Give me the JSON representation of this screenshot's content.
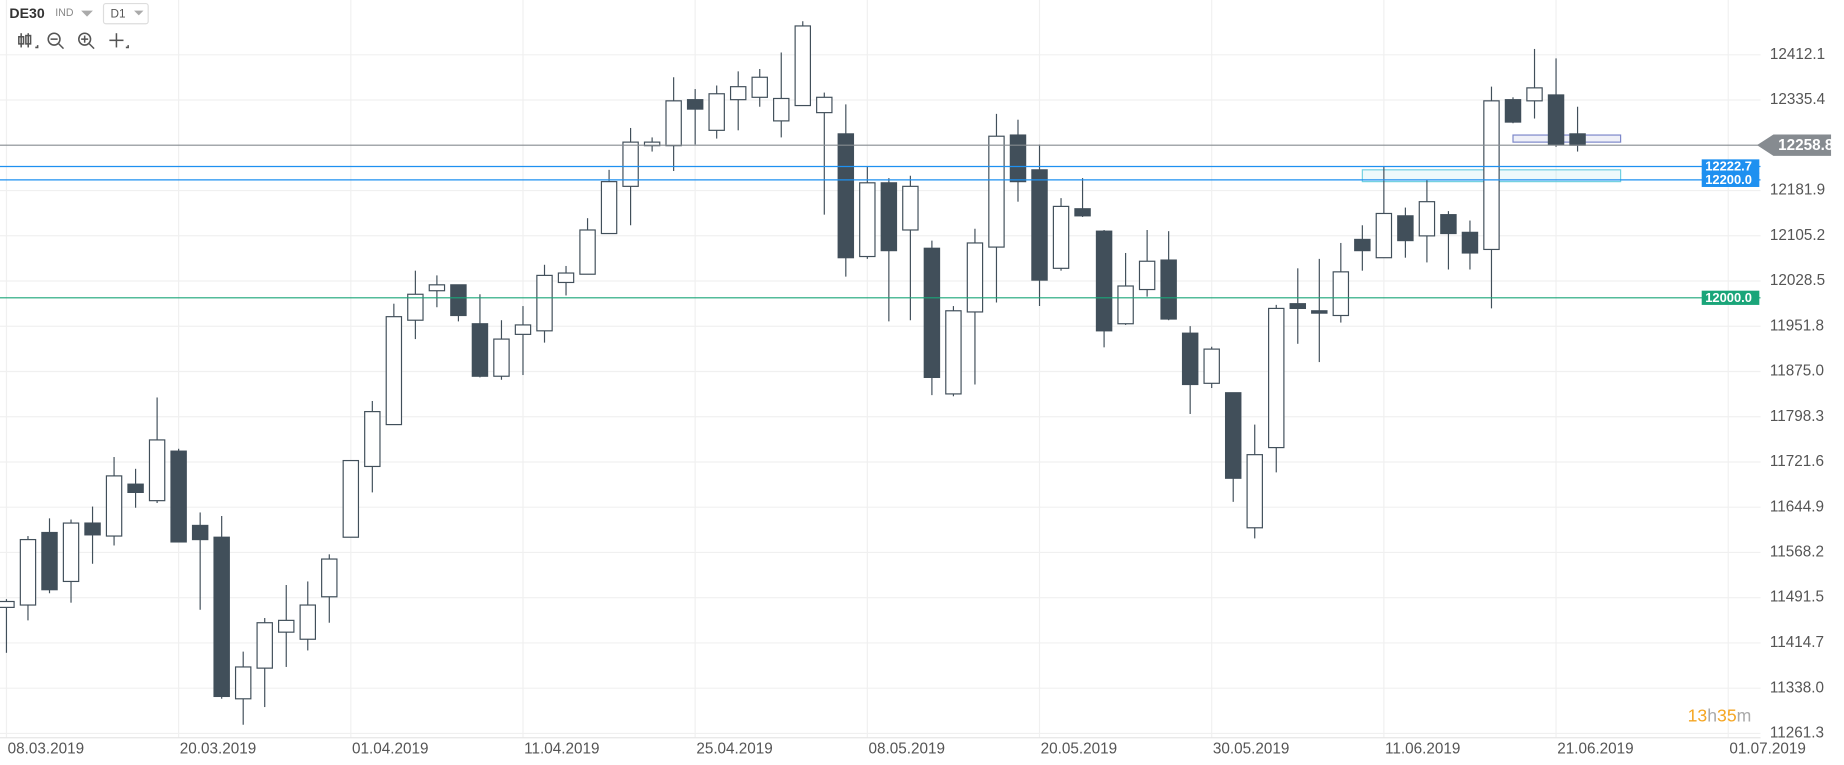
{
  "chart_data": {
    "type": "candlestick",
    "symbol": "DE30",
    "instrument_type": "IND",
    "timeframe": "D1",
    "x": [
      0,
      1,
      2,
      3,
      4,
      5,
      6,
      7,
      8,
      9,
      10,
      11,
      12,
      13,
      14,
      15,
      16,
      17,
      18,
      19,
      20,
      21,
      22,
      23,
      24,
      25,
      26,
      27,
      28,
      29,
      30,
      31,
      32,
      33,
      34,
      35,
      36,
      37,
      38,
      39,
      40,
      41,
      42,
      43,
      44,
      45,
      46,
      47,
      48,
      49,
      50,
      51,
      52,
      53,
      54,
      55,
      56,
      57,
      58,
      59,
      60,
      61,
      62,
      63,
      64,
      65,
      66,
      67,
      68,
      69,
      70,
      71,
      72,
      73
    ],
    "open": [
      11475,
      11479,
      11602,
      11519,
      11618,
      11596,
      11684,
      11656,
      11740,
      11614,
      11594,
      11320,
      11372,
      11433,
      11421,
      11493,
      11594,
      11714,
      11785,
      11962,
      12012,
      12022,
      11956,
      11867,
      11938,
      11944,
      12026,
      12040,
      12109,
      12189,
      12258,
      12258,
      12336,
      12284,
      12336,
      12340,
      12300,
      12326,
      12314,
      12278,
      12070,
      12195,
      12115,
      12084,
      11837,
      11976,
      12086,
      12276,
      12217,
      12050,
      12151,
      12113,
      11956,
      12014,
      12064,
      11940,
      11855,
      11839,
      11610,
      11746,
      11990,
      11978,
      11970,
      12099,
      12068,
      12139,
      12105,
      12141,
      12111,
      12082,
      12336,
      12334,
      12344,
      12278
    ],
    "high": [
      11489,
      11596,
      11626,
      11624,
      11646,
      11730,
      11710,
      11831,
      11744,
      11636,
      11630,
      11400,
      11457,
      11513,
      11519,
      11565,
      11724,
      11825,
      11990,
      12046,
      12038,
      12022,
      12006,
      11962,
      11986,
      12056,
      12054,
      12135,
      12217,
      12288,
      12272,
      12374,
      12354,
      12360,
      12384,
      12388,
      12416,
      12469,
      12348,
      12328,
      12223,
      12203,
      12207,
      12097,
      11986,
      12117,
      12312,
      12302,
      12260,
      12169,
      12203,
      12115,
      12076,
      12115,
      12113,
      11952,
      11917,
      11839,
      11785,
      11988,
      12050,
      12066,
      12093,
      12123,
      12223,
      12153,
      12199,
      12147,
      12131,
      12358,
      12340,
      12422,
      12406,
      12324
    ],
    "low": [
      11398,
      11453,
      11499,
      11483,
      11549,
      11580,
      11644,
      11652,
      11586,
      11471,
      11320,
      11276,
      11306,
      11374,
      11402,
      11449,
      11594,
      11670,
      11785,
      11930,
      11984,
      11960,
      11865,
      11861,
      11869,
      11924,
      12004,
      12040,
      12109,
      12123,
      12248,
      12215,
      12260,
      12270,
      12284,
      12324,
      12272,
      12326,
      12141,
      12036,
      12066,
      11960,
      11962,
      11835,
      11833,
      11853,
      11992,
      12163,
      11986,
      12046,
      12137,
      11916,
      11954,
      12002,
      11962,
      11803,
      11847,
      11654,
      11592,
      11704,
      11922,
      11891,
      11958,
      12046,
      12068,
      12068,
      12060,
      12048,
      12048,
      11982,
      12296,
      12304,
      12256,
      12248
    ],
    "close": [
      11485,
      11590,
      11505,
      11618,
      11598,
      11698,
      11670,
      11759,
      11586,
      11590,
      11324,
      11374,
      11449,
      11453,
      11479,
      11557,
      11724,
      11807,
      11968,
      12006,
      12022,
      11970,
      11867,
      11930,
      11954,
      12038,
      12042,
      12115,
      12197,
      12264,
      12264,
      12334,
      12320,
      12346,
      12358,
      12374,
      12338,
      12461,
      12340,
      12068,
      12195,
      12080,
      12189,
      11865,
      11978,
      12093,
      12274,
      12197,
      12030,
      12155,
      12139,
      11944,
      12020,
      12062,
      11964,
      11853,
      11913,
      11694,
      11734,
      11982,
      11982,
      11974,
      12044,
      12080,
      12143,
      12097,
      12163,
      12109,
      12076,
      12334,
      12298,
      12356,
      12260,
      12258.8
    ],
    "colors": {
      "up": "#ffffff",
      "down": "#414f5a",
      "wick": "#414f5a"
    },
    "xlim": [
      -0.3,
      81.5
    ],
    "xticks": [
      {
        "value": 0,
        "label": "08.03.2019"
      },
      {
        "value": 8,
        "label": "20.03.2019"
      },
      {
        "value": 16,
        "label": "01.04.2019"
      },
      {
        "value": 24,
        "label": "11.04.2019"
      },
      {
        "value": 32,
        "label": "25.04.2019"
      },
      {
        "value": 40,
        "label": "08.05.2019"
      },
      {
        "value": 48,
        "label": "20.05.2019"
      },
      {
        "value": 56,
        "label": "30.05.2019"
      },
      {
        "value": 64,
        "label": "11.06.2019"
      },
      {
        "value": 72,
        "label": "21.06.2019"
      },
      {
        "value": 80,
        "label": "01.07.2019"
      }
    ],
    "ylim": [
      11254,
      12505
    ],
    "yticks": [
      12412.1,
      12335.4,
      12181.9,
      12105.2,
      12028.5,
      11951.8,
      {
        "value": 11875,
        "label": "11875.0"
      },
      11798.3,
      11721.6,
      11644.9,
      11568.2,
      11491.5,
      11414.7,
      {
        "value": 11338,
        "label": "11338.0"
      },
      11261.3
    ],
    "grid": true,
    "levels": [
      {
        "value": 12258.8,
        "color": "#868b90",
        "style": "current"
      },
      {
        "value": 12222.7,
        "color": "#1e90f0"
      },
      {
        "value": 12200,
        "label": "12200.0",
        "color": "#1e90f0"
      },
      {
        "value": 12000,
        "label": "12000.0",
        "color": "#1aa579"
      }
    ],
    "zones": [
      {
        "x": [
          63,
          75
        ],
        "y": [
          12197,
          12217
        ],
        "color": "#6fd0e0"
      },
      {
        "x": [
          70,
          75
        ],
        "y": [
          12264,
          12276
        ],
        "color": "#7b86c9"
      }
    ],
    "countdown": [
      "13",
      "h",
      "35",
      "m"
    ]
  }
}
